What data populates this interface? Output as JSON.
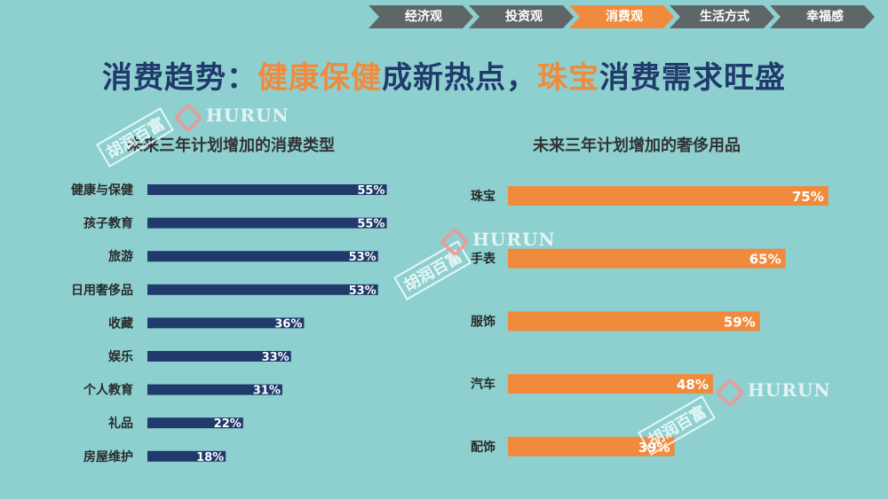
{
  "nav": {
    "items": [
      {
        "label": "经济观",
        "active": false
      },
      {
        "label": "投资观",
        "active": false
      },
      {
        "label": "消费观",
        "active": true
      },
      {
        "label": "生活方式",
        "active": false
      },
      {
        "label": "幸福感",
        "active": false
      }
    ],
    "color": "#5f6668",
    "active_color": "#f08a3c"
  },
  "title": {
    "part1": "消费趋势：",
    "highlight1": "健康保健",
    "part2": "成新热点，",
    "highlight2": "珠宝",
    "part3": "消费需求旺盛"
  },
  "watermark": {
    "brand_en": "HURUN",
    "brand_cn": "胡润百富"
  },
  "chart_data": [
    {
      "type": "bar",
      "orientation": "horizontal",
      "title": "未来三年计划增加的消费类型",
      "categories": [
        "健康与保健",
        "孩子教育",
        "旅游",
        "日用奢侈品",
        "收藏",
        "娱乐",
        "个人教育",
        "礼品",
        "房屋维护"
      ],
      "values": [
        55,
        55,
        53,
        53,
        36,
        33,
        31,
        22,
        18
      ],
      "data_labels": [
        "55%",
        "55%",
        "53%",
        "53%",
        "36%",
        "33%",
        "31%",
        "22%",
        "18%"
      ],
      "xlim": [
        0,
        100
      ],
      "color": "#1f3a6b",
      "grid": false
    },
    {
      "type": "bar",
      "orientation": "horizontal",
      "title": "未来三年计划增加的奢侈用品",
      "categories": [
        "珠宝",
        "手表",
        "服饰",
        "汽车",
        "配饰"
      ],
      "values": [
        75,
        65,
        59,
        48,
        39
      ],
      "data_labels": [
        "75%",
        "65%",
        "59%",
        "48%",
        "39%"
      ],
      "xlim": [
        0,
        100
      ],
      "color": "#f08a3c",
      "grid": false
    }
  ]
}
